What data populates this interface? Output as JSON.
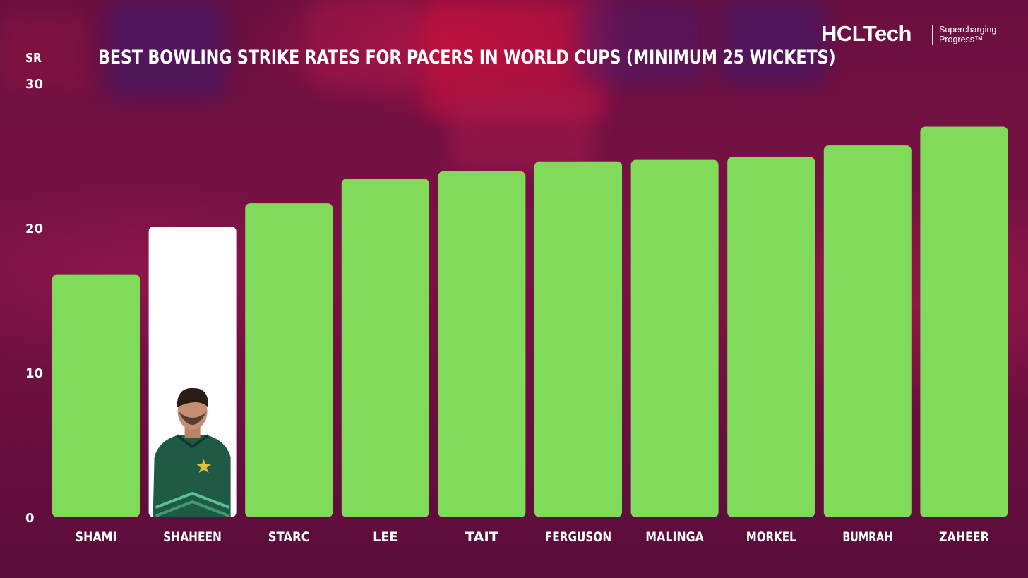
{
  "brand": {
    "name": "HCLTech",
    "tagline": "Supercharging Progress™"
  },
  "colors": {
    "bar": "#80db5a",
    "highlight_bar": "#ffffff",
    "text": "#ffffff"
  },
  "chart_data": {
    "type": "bar",
    "title": "BEST BOWLING STRIKE RATES FOR PACERS IN WORLD CUPS (MINIMUM 25 WICKETS)",
    "ylabel": "SR",
    "xlabel": "",
    "ylim": [
      0,
      30
    ],
    "yticks": [
      0,
      10,
      20,
      30
    ],
    "grid": false,
    "categories": [
      "SHAMI",
      "SHAHEEN",
      "STARC",
      "LEE",
      "TAIT",
      "FERGUSON",
      "MALINGA",
      "MORKEL",
      "BUMRAH",
      "ZAHEER"
    ],
    "values": [
      16.8,
      20.1,
      21.7,
      23.4,
      23.9,
      24.6,
      24.7,
      24.9,
      25.7,
      27.0
    ],
    "highlight": "SHAHEEN",
    "highlight_image": "player-photo"
  }
}
